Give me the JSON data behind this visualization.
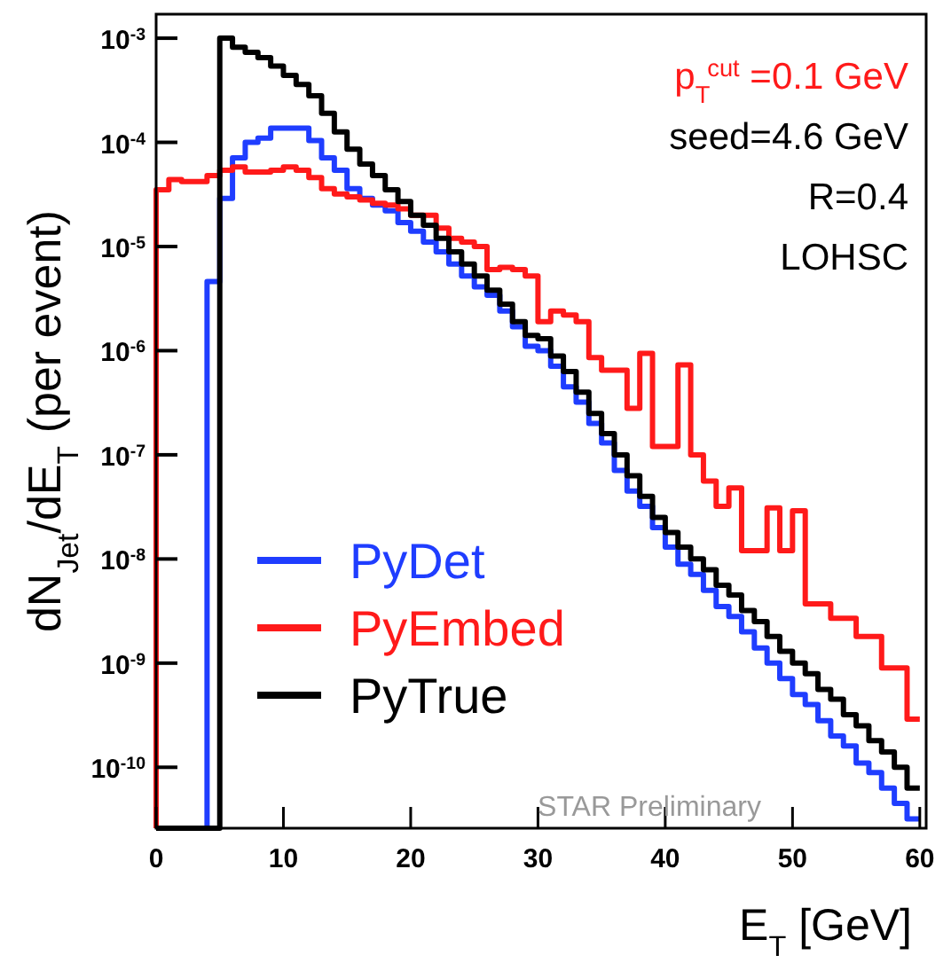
{
  "chart_data": {
    "type": "histogram",
    "xlabel": "E$_{T}$ [GeV]",
    "ylabel": "dN$_{Jet}$/dE$_{T}$ (per event)",
    "annotations": [
      "p$_{T}$$^{cut}$ =0.1 GeV",
      "seed=4.6 GeV",
      "R=0.4",
      "LOHSC",
      "STAR Preliminary"
    ],
    "bins": [
      0,
      1,
      2,
      3,
      4,
      5,
      6,
      7,
      8,
      9,
      10,
      11,
      12,
      13,
      14,
      15,
      16,
      17,
      18,
      19,
      20,
      21,
      22,
      23,
      24,
      25,
      26,
      27,
      28,
      29,
      30,
      31,
      32,
      33,
      34,
      35,
      36,
      37,
      38,
      39,
      40,
      41,
      42,
      43,
      44,
      45,
      46,
      47,
      48,
      49,
      50,
      51,
      52,
      53,
      54,
      55,
      56,
      57,
      58,
      59,
      60
    ],
    "log": "y",
    "xlim": [
      0,
      60.5
    ],
    "ylim": [
      2.6e-11,
      0.0017
    ],
    "xticks": [
      0,
      10,
      20,
      30,
      40,
      50,
      60
    ],
    "yticks": [
      {
        "value": 1e-10,
        "label": "10$^{-10}$"
      },
      {
        "value": 1e-09,
        "label": "10$^{-9}$"
      },
      {
        "value": 1e-08,
        "label": "10$^{-8}$"
      },
      {
        "value": 1e-07,
        "label": "10$^{-7}$"
      },
      {
        "value": 1e-06,
        "label": "10$^{-6}$"
      },
      {
        "value": 1e-05,
        "label": "10$^{-5}$"
      },
      {
        "value": 0.0001,
        "label": "10$^{-4}$"
      },
      {
        "value": 0.001,
        "label": "10$^{-3}$"
      }
    ],
    "grid": false,
    "legend": "bottom left",
    "series": [
      {
        "name": "PyDet",
        "color": "#1f3dff",
        "values": [
          null,
          null,
          null,
          null,
          4.6e-06,
          2.9e-05,
          7.1e-05,
          0.0001,
          0.00011,
          0.000137,
          0.000137,
          0.000137,
          0.000104,
          7.1e-05,
          5.4e-05,
          3.6e-05,
          2.9e-05,
          2.5e-05,
          2.2e-05,
          1.7e-05,
          1.4e-05,
          1.1e-05,
          8.9e-06,
          6.8e-06,
          5.2e-06,
          4.1e-06,
          3.4e-06,
          2.4e-06,
          1.7e-06,
          1.1e-06,
          1e-06,
          7.1e-07,
          4.5e-07,
          3.2e-07,
          2e-07,
          1.3e-07,
          7.1e-08,
          4.5e-08,
          3.2e-08,
          2e-08,
          1.3e-08,
          8.9e-09,
          7.1e-09,
          5e-09,
          3.5e-09,
          2.8e-09,
          2e-09,
          1.4e-09,
          1e-09,
          7.1e-10,
          5e-10,
          4e-10,
          2.8e-10,
          2e-10,
          1.6e-10,
          1.1e-10,
          8.9e-11,
          6.3e-11,
          4.5e-11,
          3.2e-11
        ]
      },
      {
        "name": "PyEmbed",
        "color": "#ff1a1a",
        "values": [
          3.5e-05,
          4.4e-05,
          4.2e-05,
          4.2e-05,
          4.8e-05,
          5.4e-05,
          5.8e-05,
          5.2e-05,
          5.2e-05,
          5.4e-05,
          5.8e-05,
          5.4e-05,
          4.6e-05,
          3.6e-05,
          3.2e-05,
          3e-05,
          2.8e-05,
          2.6e-05,
          2.5e-05,
          2.3e-05,
          2e-05,
          2e-05,
          1.5e-05,
          1.2e-05,
          1.1e-05,
          1e-05,
          6e-06,
          6.3e-06,
          6e-06,
          5.2e-06,
          1.9e-06,
          2.4e-06,
          2.2e-06,
          1.9e-06,
          8.6e-07,
          6.5e-07,
          6.5e-07,
          2.8e-07,
          9.4e-07,
          1.2e-07,
          1.2e-07,
          7.3e-07,
          1e-07,
          5.6e-08,
          3.2e-08,
          4.8e-08,
          1.2e-08,
          1.2e-08,
          3.1e-08,
          1.2e-08,
          2.9e-08,
          3.7e-09,
          3.7e-09,
          2.7e-09,
          2.7e-09,
          1.8e-09,
          1.8e-09,
          9e-10,
          9e-10,
          2.9e-10
        ]
      },
      {
        "name": "PyTrue",
        "color": "#000000",
        "values": [
          null,
          null,
          null,
          null,
          null,
          0.001,
          0.00082,
          0.00073,
          0.00065,
          0.00054,
          0.00044,
          0.00036,
          0.00028,
          0.00019,
          0.000126,
          8.6e-05,
          6.2e-05,
          4.8e-05,
          3.5e-05,
          2.7e-05,
          2e-05,
          1.6e-05,
          1.2e-05,
          8.9e-06,
          6.8e-06,
          5.2e-06,
          3.8e-06,
          2.8e-06,
          1.9e-06,
          1.4e-06,
          1.3e-06,
          8.9e-07,
          6.3e-07,
          4e-07,
          2.5e-07,
          1.6e-07,
          1e-07,
          6.3e-08,
          4e-08,
          2.5e-08,
          1.8e-08,
          1.3e-08,
          1e-08,
          7.9e-09,
          5.6e-09,
          4.5e-09,
          3.2e-09,
          2.5e-09,
          1.8e-09,
          1.3e-09,
          1e-09,
          7.9e-10,
          5.6e-10,
          4.5e-10,
          3.2e-10,
          2.5e-10,
          1.8e-10,
          1.4e-10,
          1e-10,
          6.3e-11
        ]
      }
    ]
  }
}
